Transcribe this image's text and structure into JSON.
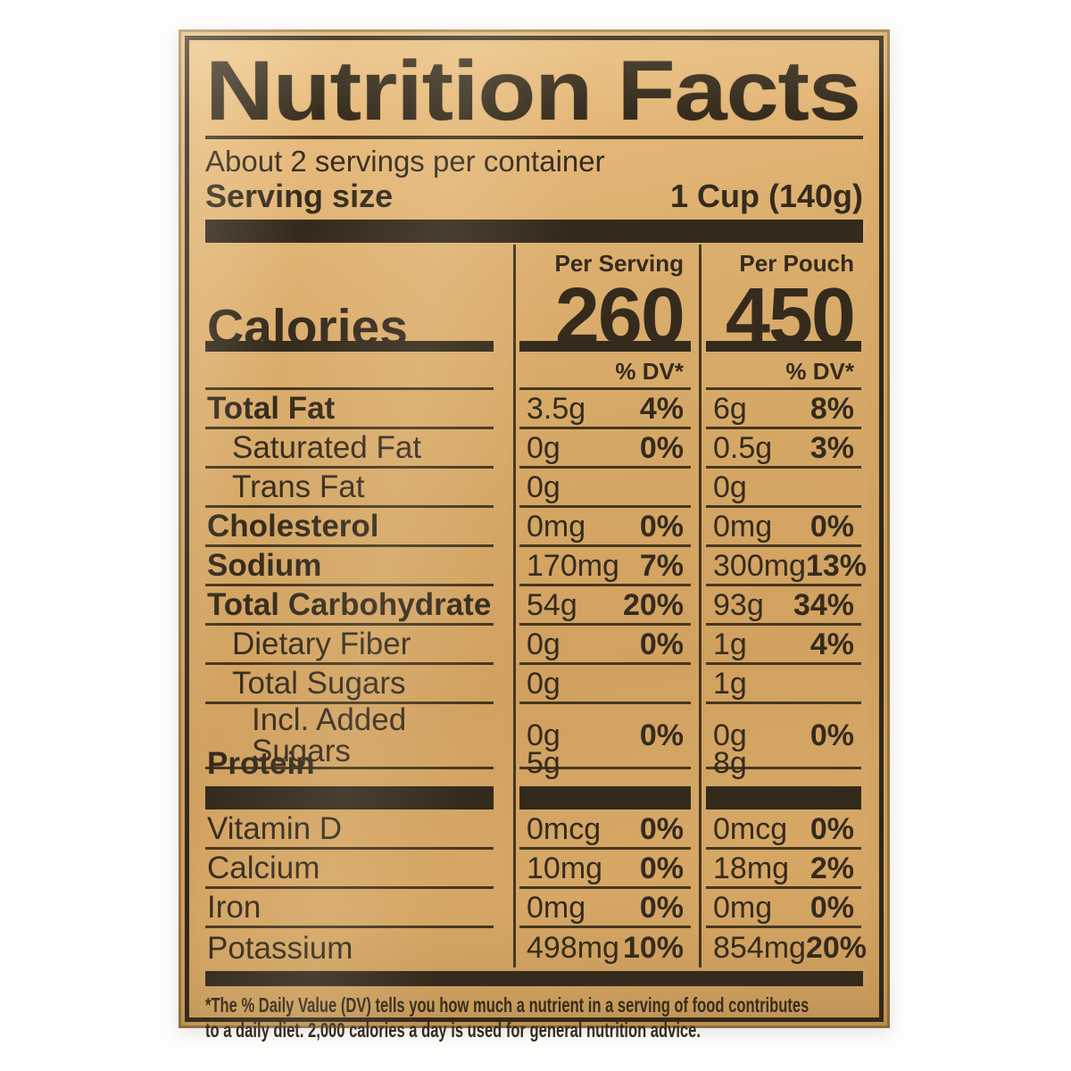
{
  "label": {
    "title": "Nutrition Facts",
    "servings_line": "About 2 servings per container",
    "serving_size": {
      "label": "Serving size",
      "value": "1 Cup (140g)"
    },
    "column_headers": {
      "per_serving": "Per Serving",
      "per_pouch": "Per Pouch"
    },
    "calories": {
      "label": "Calories",
      "per_serving": "260",
      "per_pouch": "450"
    },
    "dv_header": "% DV*",
    "nutrients": [
      {
        "name": "Total Fat",
        "serving_amount": "3.5g",
        "serving_dv": "4%",
        "pouch_amount": "6g",
        "pouch_dv": "8%"
      },
      {
        "name": "Saturated Fat",
        "serving_amount": "0g",
        "serving_dv": "0%",
        "pouch_amount": "0.5g",
        "pouch_dv": "3%"
      },
      {
        "name": "Trans Fat",
        "serving_amount": "0g",
        "serving_dv": "",
        "pouch_amount": "0g",
        "pouch_dv": ""
      },
      {
        "name": "Cholesterol",
        "serving_amount": "0mg",
        "serving_dv": "0%",
        "pouch_amount": "0mg",
        "pouch_dv": "0%"
      },
      {
        "name": "Sodium",
        "serving_amount": "170mg",
        "serving_dv": "7%",
        "pouch_amount": "300mg",
        "pouch_dv": "13%"
      },
      {
        "name": "Total Carbohydrate",
        "serving_amount": "54g",
        "serving_dv": "20%",
        "pouch_amount": "93g",
        "pouch_dv": "34%"
      },
      {
        "name": "Dietary Fiber",
        "serving_amount": "0g",
        "serving_dv": "0%",
        "pouch_amount": "1g",
        "pouch_dv": "4%"
      },
      {
        "name": "Total Sugars",
        "serving_amount": "0g",
        "serving_dv": "",
        "pouch_amount": "1g",
        "pouch_dv": ""
      },
      {
        "name": "Incl. Added Sugars",
        "serving_amount": "0g",
        "serving_dv": "0%",
        "pouch_amount": "0g",
        "pouch_dv": "0%"
      },
      {
        "name": "Protein",
        "serving_amount": "5g",
        "serving_dv": "",
        "pouch_amount": "8g",
        "pouch_dv": ""
      }
    ],
    "vitamins": [
      {
        "name": "Vitamin D",
        "serving_amount": "0mcg",
        "serving_dv": "0%",
        "pouch_amount": "0mcg",
        "pouch_dv": "0%"
      },
      {
        "name": "Calcium",
        "serving_amount": "10mg",
        "serving_dv": "0%",
        "pouch_amount": "18mg",
        "pouch_dv": "2%"
      },
      {
        "name": "Iron",
        "serving_amount": "0mg",
        "serving_dv": "0%",
        "pouch_amount": "0mg",
        "pouch_dv": "0%"
      },
      {
        "name": "Potassium",
        "serving_amount": "498mg",
        "serving_dv": "10%",
        "pouch_amount": "854mg",
        "pouch_dv": "20%"
      }
    ],
    "footnote": {
      "line1": "*The % Daily Value (DV) tells you how much a nutrient in a serving of food contributes",
      "line2": "to a daily diet. 2,000 calories a day is used for general nutrition advice."
    },
    "colors": {
      "pouch_gold": "#d5a765",
      "ink": "#352b1d"
    }
  }
}
